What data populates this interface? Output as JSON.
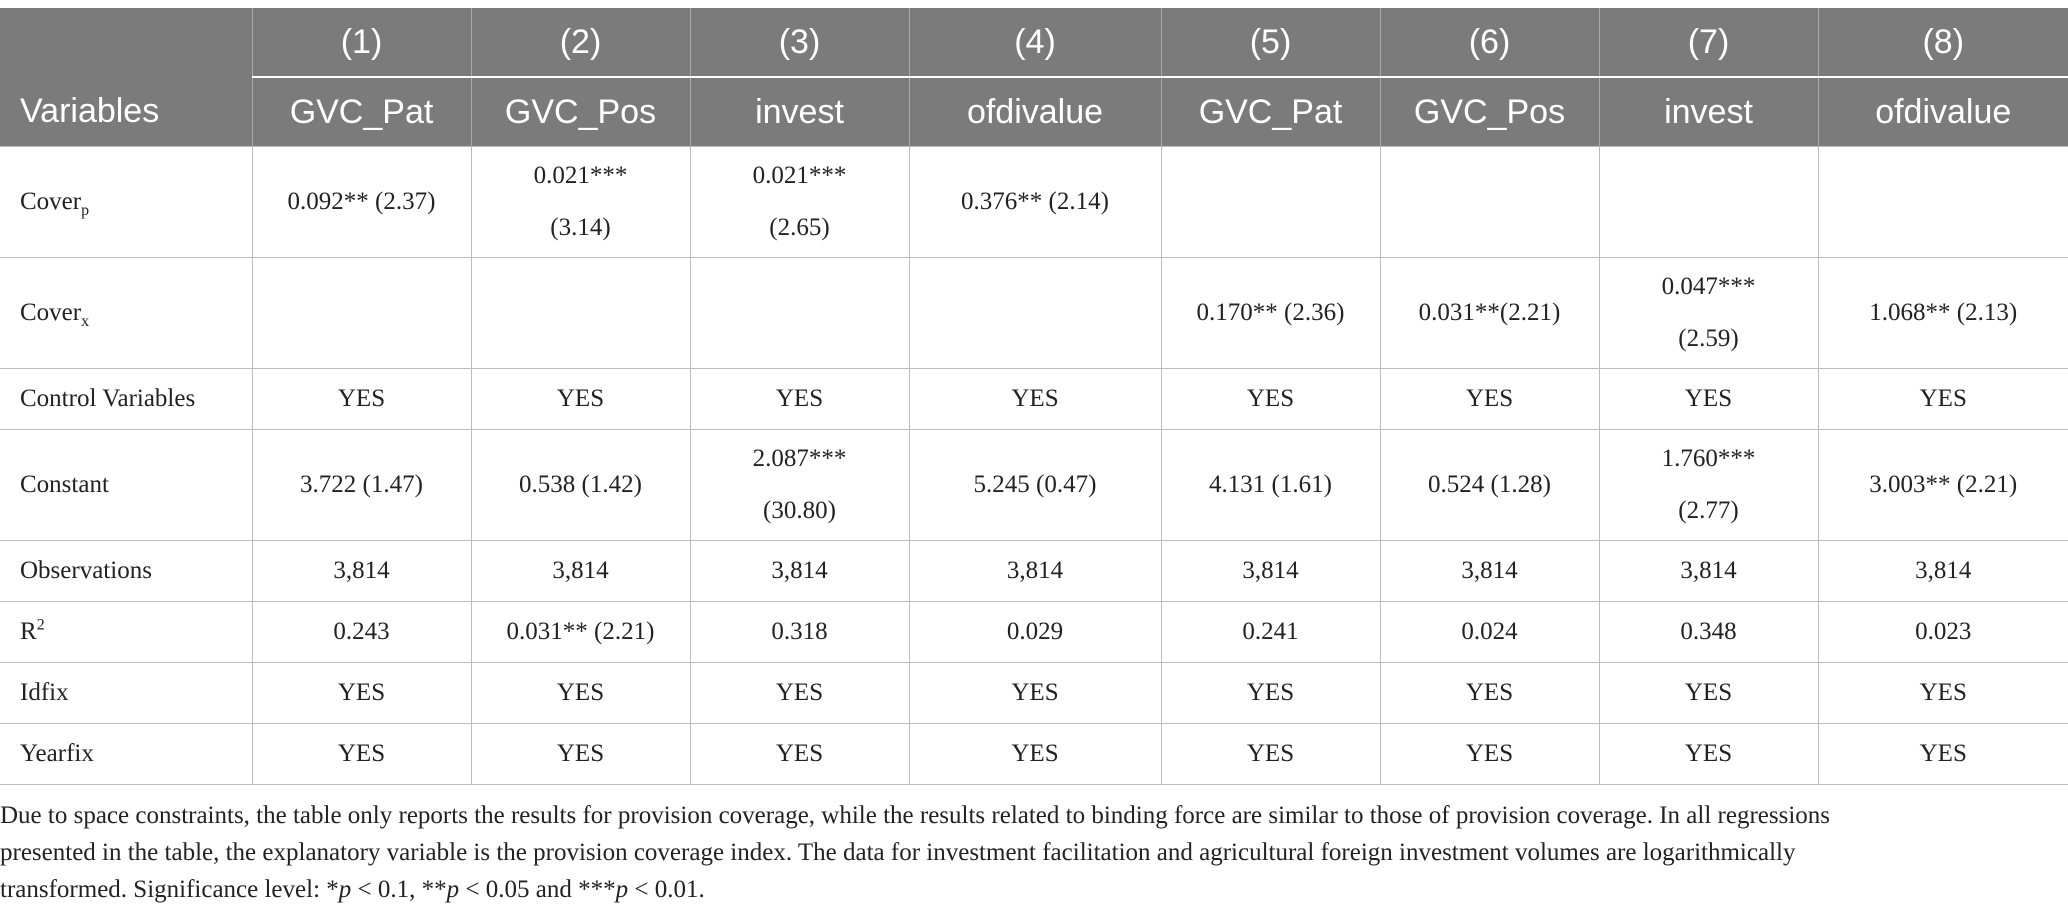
{
  "table": {
    "column_numbers": [
      "(1)",
      "(2)",
      "(3)",
      "(4)",
      "(5)",
      "(6)",
      "(7)",
      "(8)"
    ],
    "variables_label": "Variables",
    "column_variables": [
      "GVC_Pat",
      "GVC_Pos",
      "invest",
      "ofdivalue",
      "GVC_Pat",
      "GVC_Pos",
      "invest",
      "ofdivalue"
    ],
    "rows": [
      {
        "label": "Cover",
        "label_sub": "p",
        "cells": [
          [
            "0.092** (2.37)"
          ],
          [
            "0.021***",
            "(3.14)"
          ],
          [
            "0.021***",
            "(2.65)"
          ],
          [
            "0.376** (2.14)"
          ],
          [
            ""
          ],
          [
            ""
          ],
          [
            ""
          ],
          [
            ""
          ]
        ]
      },
      {
        "label": "Cover",
        "label_sub": "x",
        "cells": [
          [
            ""
          ],
          [
            ""
          ],
          [
            ""
          ],
          [
            ""
          ],
          [
            "0.170** (2.36)"
          ],
          [
            "0.031**(2.21)"
          ],
          [
            "0.047***",
            "(2.59)"
          ],
          [
            "1.068** (2.13)"
          ]
        ]
      },
      {
        "label": "Control Variables",
        "cells": [
          [
            "YES"
          ],
          [
            "YES"
          ],
          [
            "YES"
          ],
          [
            "YES"
          ],
          [
            "YES"
          ],
          [
            "YES"
          ],
          [
            "YES"
          ],
          [
            "YES"
          ]
        ]
      },
      {
        "label": "Constant",
        "cells": [
          [
            "3.722 (1.47)"
          ],
          [
            "0.538 (1.42)"
          ],
          [
            "2.087***",
            "(30.80)"
          ],
          [
            "5.245 (0.47)"
          ],
          [
            "4.131 (1.61)"
          ],
          [
            "0.524 (1.28)"
          ],
          [
            "1.760***",
            "(2.77)"
          ],
          [
            "3.003** (2.21)"
          ]
        ]
      },
      {
        "label": "Observations",
        "cells": [
          [
            "3,814"
          ],
          [
            "3,814"
          ],
          [
            "3,814"
          ],
          [
            "3,814"
          ],
          [
            "3,814"
          ],
          [
            "3,814"
          ],
          [
            "3,814"
          ],
          [
            "3,814"
          ]
        ]
      },
      {
        "label": "R",
        "label_sup": "2",
        "cells": [
          [
            "0.243"
          ],
          [
            "0.031** (2.21)"
          ],
          [
            "0.318"
          ],
          [
            "0.029"
          ],
          [
            "0.241"
          ],
          [
            "0.024"
          ],
          [
            "0.348"
          ],
          [
            "0.023"
          ]
        ]
      },
      {
        "label": "Idfix",
        "cells": [
          [
            "YES"
          ],
          [
            "YES"
          ],
          [
            "YES"
          ],
          [
            "YES"
          ],
          [
            "YES"
          ],
          [
            "YES"
          ],
          [
            "YES"
          ],
          [
            "YES"
          ]
        ]
      },
      {
        "label": "Yearfix",
        "cells": [
          [
            "YES"
          ],
          [
            "YES"
          ],
          [
            "YES"
          ],
          [
            "YES"
          ],
          [
            "YES"
          ],
          [
            "YES"
          ],
          [
            "YES"
          ],
          [
            "YES"
          ]
        ]
      }
    ]
  },
  "note": {
    "line1": "Due to space constraints, the table only reports the results for provision coverage, while the results related to binding force are similar to those of provision coverage. In all regressions",
    "line2": "presented in the table, the explanatory variable is the provision coverage index. The data for investment facilitation and agricultural foreign investment volumes are logarithmically",
    "line3_prefix": "transformed. Significance level: *",
    "p1": "p",
    "t1": " < 0.1, **",
    "p2": "p",
    "t2": " < 0.05 and ***",
    "p3": "p",
    "t3": " < 0.01."
  }
}
